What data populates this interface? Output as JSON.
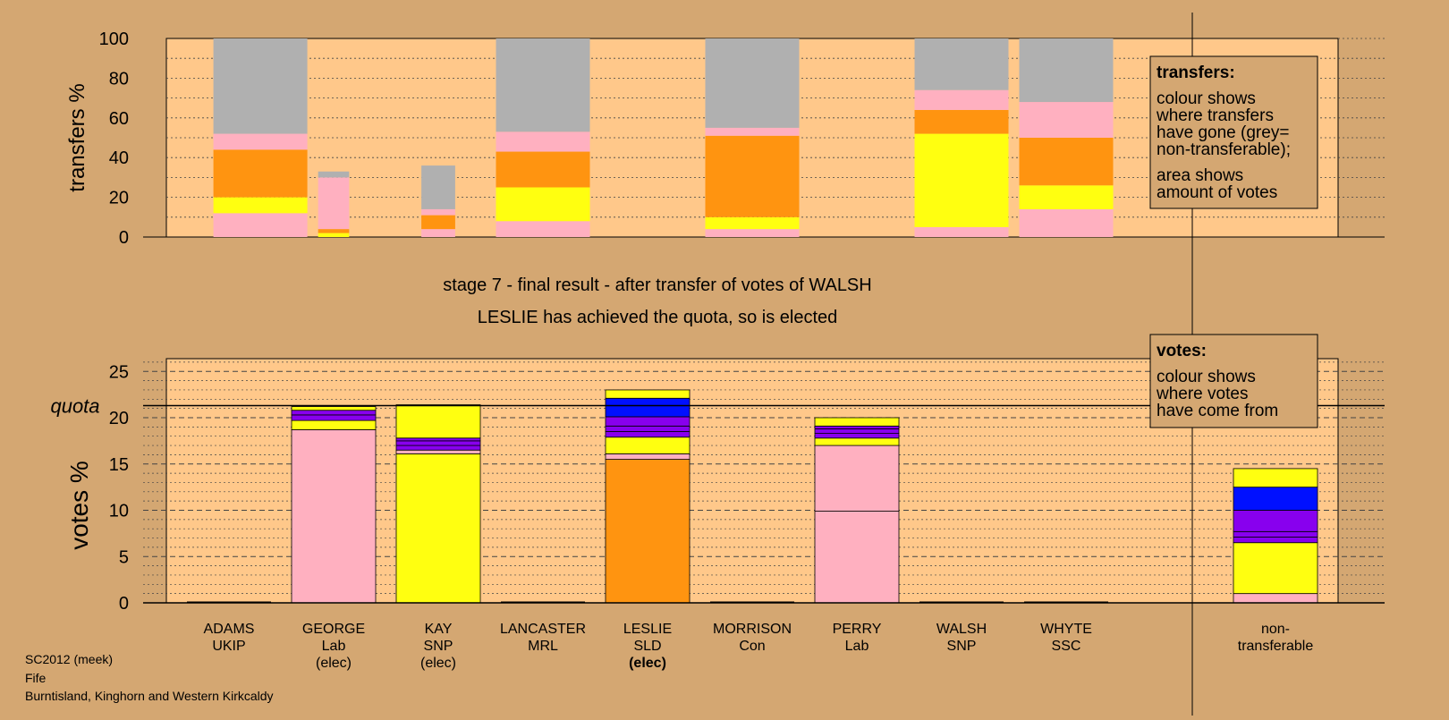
{
  "colors": {
    "background": "#d4a772",
    "plot_area": "#ffc88a",
    "grey": "#b0b0b0",
    "pink": "#ffb0c0",
    "orange": "#ff9410",
    "yellow": "#ffff10",
    "purple": "#8800ee",
    "blue": "#0010ff",
    "purple_dark": "#6000b0"
  },
  "transfers_chart": {
    "ylabel": "transfers %",
    "yticks": [
      "100",
      "80",
      "60",
      "40",
      "20",
      "0"
    ],
    "legend": {
      "title": "transfers:",
      "lines": [
        "colour shows",
        "where transfers",
        "have gone (grey=",
        "non-transferable);"
      ],
      "lines2": [
        "area shows",
        "amount of votes"
      ]
    }
  },
  "stage_title": "stage 7 - final result - after transfer of votes of WALSH",
  "stage_subtitle": "LESLIE has achieved the quota, so is elected",
  "votes_chart": {
    "ylabel": "votes %",
    "quota_label": "quota",
    "yticks": [
      "25",
      "20",
      "15",
      "10",
      "5",
      "0"
    ],
    "legend": {
      "title": "votes:",
      "lines": [
        "colour shows",
        "where votes",
        "have come from"
      ]
    }
  },
  "candidates": [
    {
      "name": "ADAMS",
      "party": "UKIP",
      "status": ""
    },
    {
      "name": "GEORGE",
      "party": "Lab",
      "status": "(elec)"
    },
    {
      "name": "KAY",
      "party": "SNP",
      "status": "(elec)"
    },
    {
      "name": "LANCASTER",
      "party": "MRL",
      "status": ""
    },
    {
      "name": "LESLIE",
      "party": "SLD",
      "status": "(elec)"
    },
    {
      "name": "MORRISON",
      "party": "Con",
      "status": ""
    },
    {
      "name": "PERRY",
      "party": "Lab",
      "status": ""
    },
    {
      "name": "WALSH",
      "party": "SNP",
      "status": ""
    },
    {
      "name": "WHYTE",
      "party": "SSC",
      "status": ""
    }
  ],
  "nontransferable_label": [
    "non-",
    "transferable"
  ],
  "footer": {
    "line1": "SC2012 (meek)",
    "line2": "Fife",
    "line3": "Burntisland, Kinghorn and Western Kirkcaldy"
  },
  "chart_data": [
    {
      "type": "bar",
      "subtype": "stacked-variable-width",
      "ylabel": "transfers %",
      "ylim": [
        0,
        100
      ],
      "grid": true,
      "columns": [
        {
          "category": "ADAMS",
          "position": 0.3,
          "segments": [
            {
              "color": "pink",
              "value": 12
            },
            {
              "color": "yellow",
              "value": 8
            },
            {
              "color": "orange",
              "value": 24
            },
            {
              "color": "pink",
              "value": 8
            },
            {
              "color": "grey",
              "value": 48
            }
          ]
        },
        {
          "category": "GEORGE",
          "position": 1,
          "segments": [
            {
              "color": "yellow",
              "value": 2
            },
            {
              "color": "orange",
              "value": 2
            },
            {
              "color": "pink",
              "value": 26
            },
            {
              "color": "grey",
              "value": 3
            }
          ]
        },
        {
          "category": "KAY",
          "position": 2,
          "segments": [
            {
              "color": "pink",
              "value": 4
            },
            {
              "color": "orange",
              "value": 7
            },
            {
              "color": "pink",
              "value": 3
            },
            {
              "color": "grey",
              "value": 22
            }
          ]
        },
        {
          "category": "LANCASTER",
          "position": 3,
          "segments": [
            {
              "color": "pink",
              "value": 8
            },
            {
              "color": "yellow",
              "value": 17
            },
            {
              "color": "orange",
              "value": 18
            },
            {
              "color": "pink",
              "value": 10
            },
            {
              "color": "grey",
              "value": 47
            }
          ]
        },
        {
          "category": "MORRISON",
          "position": 5,
          "segments": [
            {
              "color": "pink",
              "value": 4
            },
            {
              "color": "yellow",
              "value": 6
            },
            {
              "color": "orange",
              "value": 41
            },
            {
              "color": "pink",
              "value": 4
            },
            {
              "color": "grey",
              "value": 45
            }
          ]
        },
        {
          "category": "WALSH",
          "position": 7,
          "segments": [
            {
              "color": "pink",
              "value": 5
            },
            {
              "color": "yellow",
              "value": 47
            },
            {
              "color": "orange",
              "value": 12
            },
            {
              "color": "pink",
              "value": 10
            },
            {
              "color": "grey",
              "value": 26
            }
          ]
        },
        {
          "category": "WHYTE",
          "position": 8,
          "segments": [
            {
              "color": "pink",
              "value": 14
            },
            {
              "color": "yellow",
              "value": 12
            },
            {
              "color": "orange",
              "value": 24
            },
            {
              "color": "pink",
              "value": 18
            },
            {
              "color": "grey",
              "value": 32
            }
          ]
        }
      ]
    },
    {
      "type": "bar",
      "subtype": "stacked",
      "ylabel": "votes %",
      "ylim": [
        0,
        26
      ],
      "quota": 21.3,
      "grid": true,
      "categories": [
        "ADAMS",
        "GEORGE",
        "KAY",
        "LANCASTER",
        "LESLIE",
        "MORRISON",
        "PERRY",
        "WALSH",
        "WHYTE",
        "non-transferable"
      ],
      "bars": [
        {
          "category": "ADAMS",
          "segments": []
        },
        {
          "category": "GEORGE",
          "segments": [
            {
              "color": "pink",
              "value": 18.7
            },
            {
              "color": "yellow",
              "value": 1.0
            },
            {
              "color": "purple",
              "value": 0.6
            },
            {
              "color": "purple",
              "value": 0.5
            },
            {
              "color": "yellow",
              "value": 0.4
            }
          ]
        },
        {
          "category": "KAY",
          "segments": [
            {
              "color": "yellow",
              "value": 16.1
            },
            {
              "color": "pink",
              "value": 0.4
            },
            {
              "color": "purple",
              "value": 0.5
            },
            {
              "color": "purple",
              "value": 0.5
            },
            {
              "color": "purple",
              "value": 0.3
            },
            {
              "color": "yellow",
              "value": 3.6
            }
          ]
        },
        {
          "category": "LANCASTER",
          "segments": []
        },
        {
          "category": "LESLIE",
          "segments": [
            {
              "color": "orange",
              "value": 15.5
            },
            {
              "color": "pink",
              "value": 0.6
            },
            {
              "color": "yellow",
              "value": 1.8
            },
            {
              "color": "purple",
              "value": 0.6
            },
            {
              "color": "purple",
              "value": 0.6
            },
            {
              "color": "purple",
              "value": 1.0
            },
            {
              "color": "blue",
              "value": 2.0
            },
            {
              "color": "yellow",
              "value": 0.9
            }
          ]
        },
        {
          "category": "MORRISON",
          "segments": []
        },
        {
          "category": "PERRY",
          "segments": [
            {
              "color": "pink",
              "value": 9.9
            },
            {
              "color": "pink",
              "value": 7.1
            },
            {
              "color": "yellow",
              "value": 0.8
            },
            {
              "color": "purple",
              "value": 0.5
            },
            {
              "color": "purple",
              "value": 0.5
            },
            {
              "color": "purple",
              "value": 0.3
            },
            {
              "color": "yellow",
              "value": 0.9
            }
          ]
        },
        {
          "category": "WALSH",
          "segments": []
        },
        {
          "category": "WHYTE",
          "segments": []
        },
        {
          "category": "non-transferable",
          "segments": [
            {
              "color": "pink",
              "value": 1.0
            },
            {
              "color": "yellow",
              "value": 5.5
            },
            {
              "color": "purple",
              "value": 0.6
            },
            {
              "color": "purple",
              "value": 0.6
            },
            {
              "color": "purple",
              "value": 2.3
            },
            {
              "color": "blue",
              "value": 2.5
            },
            {
              "color": "yellow",
              "value": 2.0
            }
          ]
        }
      ]
    }
  ]
}
